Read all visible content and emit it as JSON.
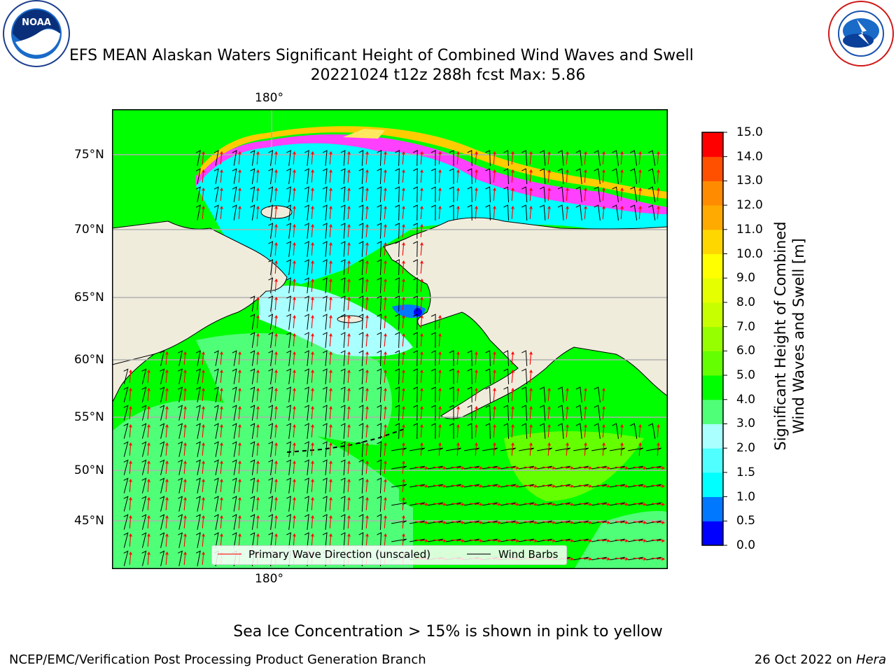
{
  "title": {
    "line1": "EFS MEAN Alaskan Waters Significant Height of Combined Wind Waves and Swell",
    "line2": "20221024 t12z 288h fcst   Max: 5.86"
  },
  "logos": {
    "left": {
      "icon": "noaa-logo",
      "ring_text": "NATIONAL OCEANIC AND ATMOSPHERIC ADMINISTRATION",
      "center_text": "NOAA",
      "bottom_text": "U.S. DEPARTMENT OF COMMERCE"
    },
    "right": {
      "icon": "nws-logo",
      "ring_text": "NATIONAL WEATHER SERVICE"
    }
  },
  "map": {
    "lon_labels": {
      "top": "180°",
      "bottom": "180°"
    },
    "lat_labels": [
      "75°N",
      "70°N",
      "65°N",
      "60°N",
      "55°N",
      "50°N",
      "45°N"
    ],
    "colors": {
      "land": "#efecdc",
      "coast": "#000000",
      "grid": "#b0b0b0"
    }
  },
  "legend": {
    "wave_label": "Primary Wave Direction (unscaled)",
    "wind_label": "Wind Barbs",
    "wave_color": "#ff0000",
    "wind_color": "#000000"
  },
  "colorbar": {
    "label_line1": "Significant Height of Combined",
    "label_line2": "Wind Waves and Swell [m]",
    "ticks": [
      "0.0",
      "0.5",
      "1.0",
      "1.5",
      "2.0",
      "3.0",
      "4.0",
      "5.0",
      "6.0",
      "7.0",
      "8.0",
      "9.0",
      "10.0",
      "11.0",
      "12.0",
      "13.0",
      "14.0",
      "15.0"
    ],
    "colors": [
      "#0000ff",
      "#0078ff",
      "#00ffff",
      "#50ffff",
      "#aaffff",
      "#50ff78",
      "#00ff00",
      "#64ff00",
      "#96ff00",
      "#c8ff00",
      "#e6ff00",
      "#ffff00",
      "#ffd700",
      "#ffaa00",
      "#ff8c00",
      "#ff5000",
      "#ff0000"
    ]
  },
  "note": "Sea Ice Concentration > 15% is shown in pink to yellow",
  "footer": {
    "left": "NCEP/EMC/Verification Post Processing Product Generation Branch",
    "right_prefix": "26 Oct 2022 on ",
    "right_host": "Hera"
  }
}
